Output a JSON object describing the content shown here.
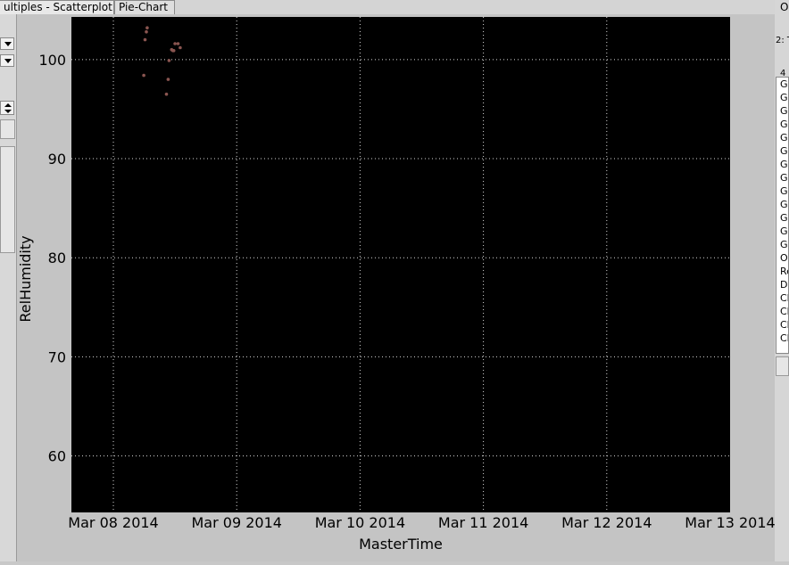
{
  "tabs": [
    {
      "label": "ultiples - Scatterplot"
    },
    {
      "label": "Pie-Chart"
    }
  ],
  "right_panel": {
    "top_label": "O",
    "sub_label": "2: T",
    "group_label": "4",
    "list_items": [
      "Gr",
      "Gr",
      "Gr",
      "Gr",
      "Gr",
      "Gr",
      "Gr",
      "Gr",
      "Gr",
      "Gr",
      "Gr",
      "Gr",
      "Gr",
      "Oc",
      "Re",
      "Da",
      "Cl",
      "Cl",
      "Cl",
      "Cl"
    ]
  },
  "colors": {
    "plot_background": "#000000",
    "grid": "#d9d9d9",
    "point": "#8a5550"
  },
  "chart_data": {
    "type": "scatter",
    "xlabel": "MasterTime",
    "ylabel": "RelHumidity",
    "x_ticks": [
      "Mar 08 2014",
      "Mar 09 2014",
      "Mar 10 2014",
      "Mar 11 2014",
      "Mar 12 2014",
      "Mar 13 2014"
    ],
    "y_ticks": [
      "100",
      "90",
      "80",
      "70",
      "60"
    ],
    "xlim": [
      "2014-03-07 15:50",
      "2014-03-13 00:00"
    ],
    "ylim": [
      54.3,
      104.3
    ],
    "grid": true,
    "points": [
      {
        "x": "2014-03-08 06:35",
        "y": 103.2
      },
      {
        "x": "2014-03-08 06:25",
        "y": 102.8
      },
      {
        "x": "2014-03-08 06:10",
        "y": 102.0
      },
      {
        "x": "2014-03-08 05:55",
        "y": 98.4
      },
      {
        "x": "2014-03-08 12:00",
        "y": 101.6
      },
      {
        "x": "2014-03-08 12:35",
        "y": 101.6
      },
      {
        "x": "2014-03-08 13:00",
        "y": 101.2
      },
      {
        "x": "2014-03-08 11:20",
        "y": 101.0
      },
      {
        "x": "2014-03-08 11:45",
        "y": 100.9
      },
      {
        "x": "2014-03-08 11:35",
        "y": 100.9
      },
      {
        "x": "2014-03-08 10:50",
        "y": 99.9
      },
      {
        "x": "2014-03-08 10:40",
        "y": 98.0
      },
      {
        "x": "2014-03-08 10:20",
        "y": 96.5
      }
    ]
  }
}
